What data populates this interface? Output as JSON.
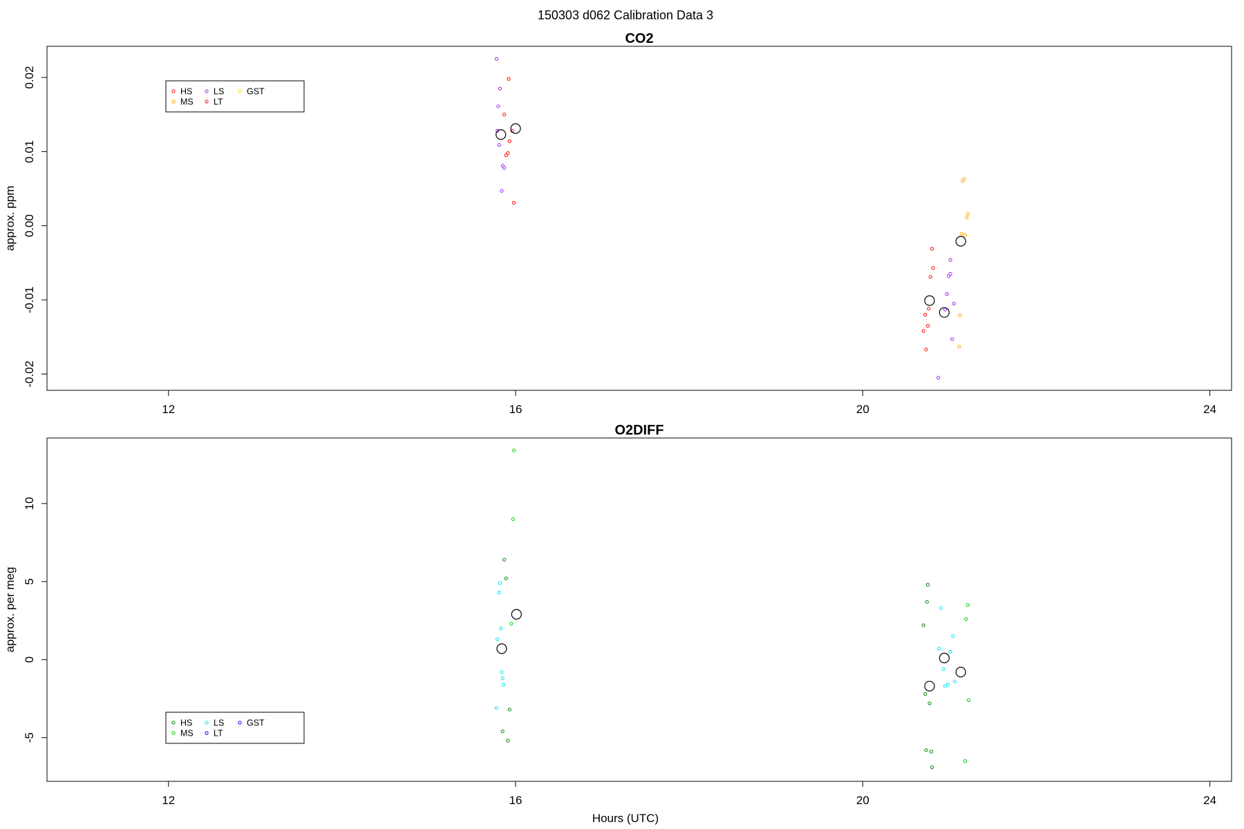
{
  "figure": {
    "title": "150303   d062   Calibration Data 3",
    "xlabel": "Hours (UTC)"
  },
  "colors": {
    "HS": "#ff0000",
    "MS": "#ffa500",
    "LS": "#a020f0",
    "LT": "#ff0000",
    "GST": "#ffd700",
    "O2_HS": "#008000",
    "O2_MS": "#00cc00",
    "O2_LS": "#00e5ee",
    "O2_LT": "#0000ff",
    "O2_GST": "#0000ff",
    "mean": "#000000"
  },
  "chart_data": [
    {
      "type": "scatter",
      "title": "CO2",
      "xlabel": "",
      "ylabel": "approx. ppm",
      "xlim": [
        10.6,
        24.25
      ],
      "ylim": [
        -0.0222,
        0.0242
      ],
      "xticks": [
        12,
        16,
        20,
        24
      ],
      "yticks": [
        -0.02,
        -0.01,
        0.0,
        0.01,
        0.02
      ],
      "ytick_labels": [
        "-0.02",
        "-0.01",
        "0.00",
        "0.01",
        "0.02"
      ],
      "legend": {
        "placement": "top-left",
        "entries": [
          {
            "label": "HS",
            "color": "#ff0000"
          },
          {
            "label": "MS",
            "color": "#ffa500"
          },
          {
            "label": "LS",
            "color": "#a020f0"
          },
          {
            "label": "LT",
            "color": "#ff0000"
          },
          {
            "label": "GST",
            "color": "#ffd700"
          }
        ]
      },
      "series": [
        {
          "name": "HS",
          "color": "#ff0000",
          "points": [
            [
              15.92,
              0.0198
            ],
            [
              15.87,
              0.015
            ],
            [
              15.96,
              0.0128
            ],
            [
              15.93,
              0.0114
            ],
            [
              15.89,
              0.0095
            ],
            [
              15.91,
              0.0098
            ],
            [
              15.98,
              0.0031
            ],
            [
              20.8,
              -0.0031
            ],
            [
              20.81,
              -0.0057
            ],
            [
              20.78,
              -0.0069
            ],
            [
              20.76,
              -0.0112
            ],
            [
              20.72,
              -0.012
            ],
            [
              20.75,
              -0.0135
            ],
            [
              20.7,
              -0.0142
            ],
            [
              20.73,
              -0.0167
            ]
          ]
        },
        {
          "name": "MS",
          "color": "#ffa500",
          "points": [
            [
              21.17,
              0.0063
            ],
            [
              21.15,
              0.006
            ],
            [
              21.21,
              0.0016
            ],
            [
              21.2,
              0.0011
            ],
            [
              21.14,
              -0.0011
            ],
            [
              21.18,
              -0.0013
            ],
            [
              21.12,
              -0.0121
            ],
            [
              21.11,
              -0.0163
            ]
          ]
        },
        {
          "name": "LS",
          "color": "#a020f0",
          "points": [
            [
              15.78,
              0.0225
            ],
            [
              15.82,
              0.0185
            ],
            [
              15.8,
              0.0161
            ],
            [
              15.79,
              0.0128
            ],
            [
              15.81,
              0.0109
            ],
            [
              15.85,
              0.0081
            ],
            [
              15.87,
              0.0078
            ],
            [
              15.84,
              0.0047
            ],
            [
              21.01,
              -0.0046
            ],
            [
              21.01,
              -0.0065
            ],
            [
              20.99,
              -0.0068
            ],
            [
              20.97,
              -0.0092
            ],
            [
              21.05,
              -0.0105
            ],
            [
              20.95,
              -0.0113
            ],
            [
              21.03,
              -0.0153
            ],
            [
              20.87,
              -0.0205
            ]
          ]
        },
        {
          "name": "LT",
          "color": "#ff0000",
          "points": []
        },
        {
          "name": "GST",
          "color": "#ffd700",
          "points": []
        }
      ],
      "means": [
        {
          "x": 15.83,
          "y": 0.0123
        },
        {
          "x": 16.0,
          "y": 0.0131
        },
        {
          "x": 20.77,
          "y": -0.0101
        },
        {
          "x": 20.94,
          "y": -0.0117
        },
        {
          "x": 21.13,
          "y": -0.0021
        }
      ]
    },
    {
      "type": "scatter",
      "title": "O2DIFF",
      "xlabel": "Hours (UTC)",
      "ylabel": "approx. per meg",
      "xlim": [
        10.6,
        24.25
      ],
      "ylim": [
        -7.8,
        14.2
      ],
      "xticks": [
        12,
        16,
        20,
        24
      ],
      "yticks": [
        -5,
        0,
        5,
        10
      ],
      "ytick_labels": [
        "-5",
        "0",
        "5",
        "10"
      ],
      "legend": {
        "placement": "bottom-left",
        "entries": [
          {
            "label": "HS",
            "color": "#008000"
          },
          {
            "label": "MS",
            "color": "#00cc00"
          },
          {
            "label": "LS",
            "color": "#00e5ee"
          },
          {
            "label": "LT",
            "color": "#0000ff"
          },
          {
            "label": "GST",
            "color": "#0000ff"
          }
        ]
      },
      "series": [
        {
          "name": "HS",
          "color": "#008000",
          "points": [
            [
              15.87,
              6.4
            ],
            [
              15.89,
              5.2
            ],
            [
              15.93,
              -3.2
            ],
            [
              15.85,
              -4.6
            ],
            [
              15.91,
              -5.2
            ],
            [
              20.74,
              3.7
            ],
            [
              20.75,
              4.8
            ],
            [
              20.7,
              2.2
            ],
            [
              20.72,
              -2.2
            ],
            [
              20.77,
              -2.8
            ],
            [
              20.73,
              -5.8
            ],
            [
              20.79,
              -5.9
            ],
            [
              20.8,
              -6.9
            ]
          ]
        },
        {
          "name": "MS",
          "color": "#00cc00",
          "points": [
            [
              15.98,
              13.4
            ],
            [
              15.97,
              9.0
            ],
            [
              15.95,
              2.3
            ],
            [
              21.21,
              3.5
            ],
            [
              21.19,
              2.6
            ],
            [
              21.22,
              -2.6
            ],
            [
              21.18,
              -6.5
            ]
          ]
        },
        {
          "name": "LS",
          "color": "#00e5ee",
          "points": [
            [
              15.82,
              4.9
            ],
            [
              15.81,
              4.3
            ],
            [
              15.83,
              2.0
            ],
            [
              15.79,
              1.3
            ],
            [
              15.84,
              -0.8
            ],
            [
              15.85,
              -1.2
            ],
            [
              15.86,
              -1.6
            ],
            [
              15.78,
              -3.1
            ],
            [
              20.9,
              3.3
            ],
            [
              21.04,
              1.5
            ],
            [
              20.88,
              0.7
            ],
            [
              21.01,
              0.5
            ],
            [
              20.93,
              -0.6
            ],
            [
              21.06,
              -1.4
            ],
            [
              20.98,
              -1.6
            ],
            [
              20.95,
              -1.7
            ]
          ]
        },
        {
          "name": "LT",
          "color": "#0000ff",
          "points": []
        },
        {
          "name": "GST",
          "color": "#0000ff",
          "points": []
        }
      ],
      "means": [
        {
          "x": 15.84,
          "y": 0.7
        },
        {
          "x": 16.01,
          "y": 2.9
        },
        {
          "x": 20.77,
          "y": -1.7
        },
        {
          "x": 20.94,
          "y": 0.1
        },
        {
          "x": 21.13,
          "y": -0.8
        }
      ]
    }
  ]
}
